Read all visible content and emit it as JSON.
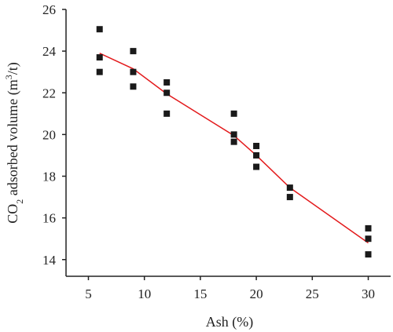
{
  "chart_data": {
    "type": "scatter",
    "title": "",
    "xlabel": "Ash (%)",
    "ylabel_parts": {
      "prefix": "CO",
      "subscript": "2",
      "middle": " adsorbed volume (m",
      "superscript": "3",
      "suffix": "/t)"
    },
    "xlim": [
      3,
      32
    ],
    "ylim": [
      13.2,
      26
    ],
    "xticks": [
      5,
      10,
      15,
      20,
      25,
      30
    ],
    "yticks": [
      14,
      16,
      18,
      20,
      22,
      24,
      26
    ],
    "grid": false,
    "legend": "none",
    "series": [
      {
        "kind": "points",
        "x": [
          6,
          6,
          6,
          9,
          9,
          9,
          12,
          12,
          12,
          18,
          18,
          18,
          20,
          20,
          20,
          23,
          23,
          30,
          30,
          30
        ],
        "y": [
          25.05,
          23.7,
          23.0,
          24.0,
          23.0,
          22.3,
          22.5,
          22.0,
          21.0,
          21.0,
          20.0,
          19.65,
          19.45,
          19.0,
          18.45,
          17.45,
          17.0,
          15.5,
          15.0,
          14.25
        ],
        "color": "#1a1a1a"
      },
      {
        "kind": "fit-line",
        "x": [
          6,
          9,
          12,
          18,
          20,
          23,
          30
        ],
        "y": [
          23.9,
          23.15,
          21.95,
          19.95,
          19.0,
          17.45,
          14.8
        ],
        "color": "#e31a1c"
      }
    ]
  }
}
